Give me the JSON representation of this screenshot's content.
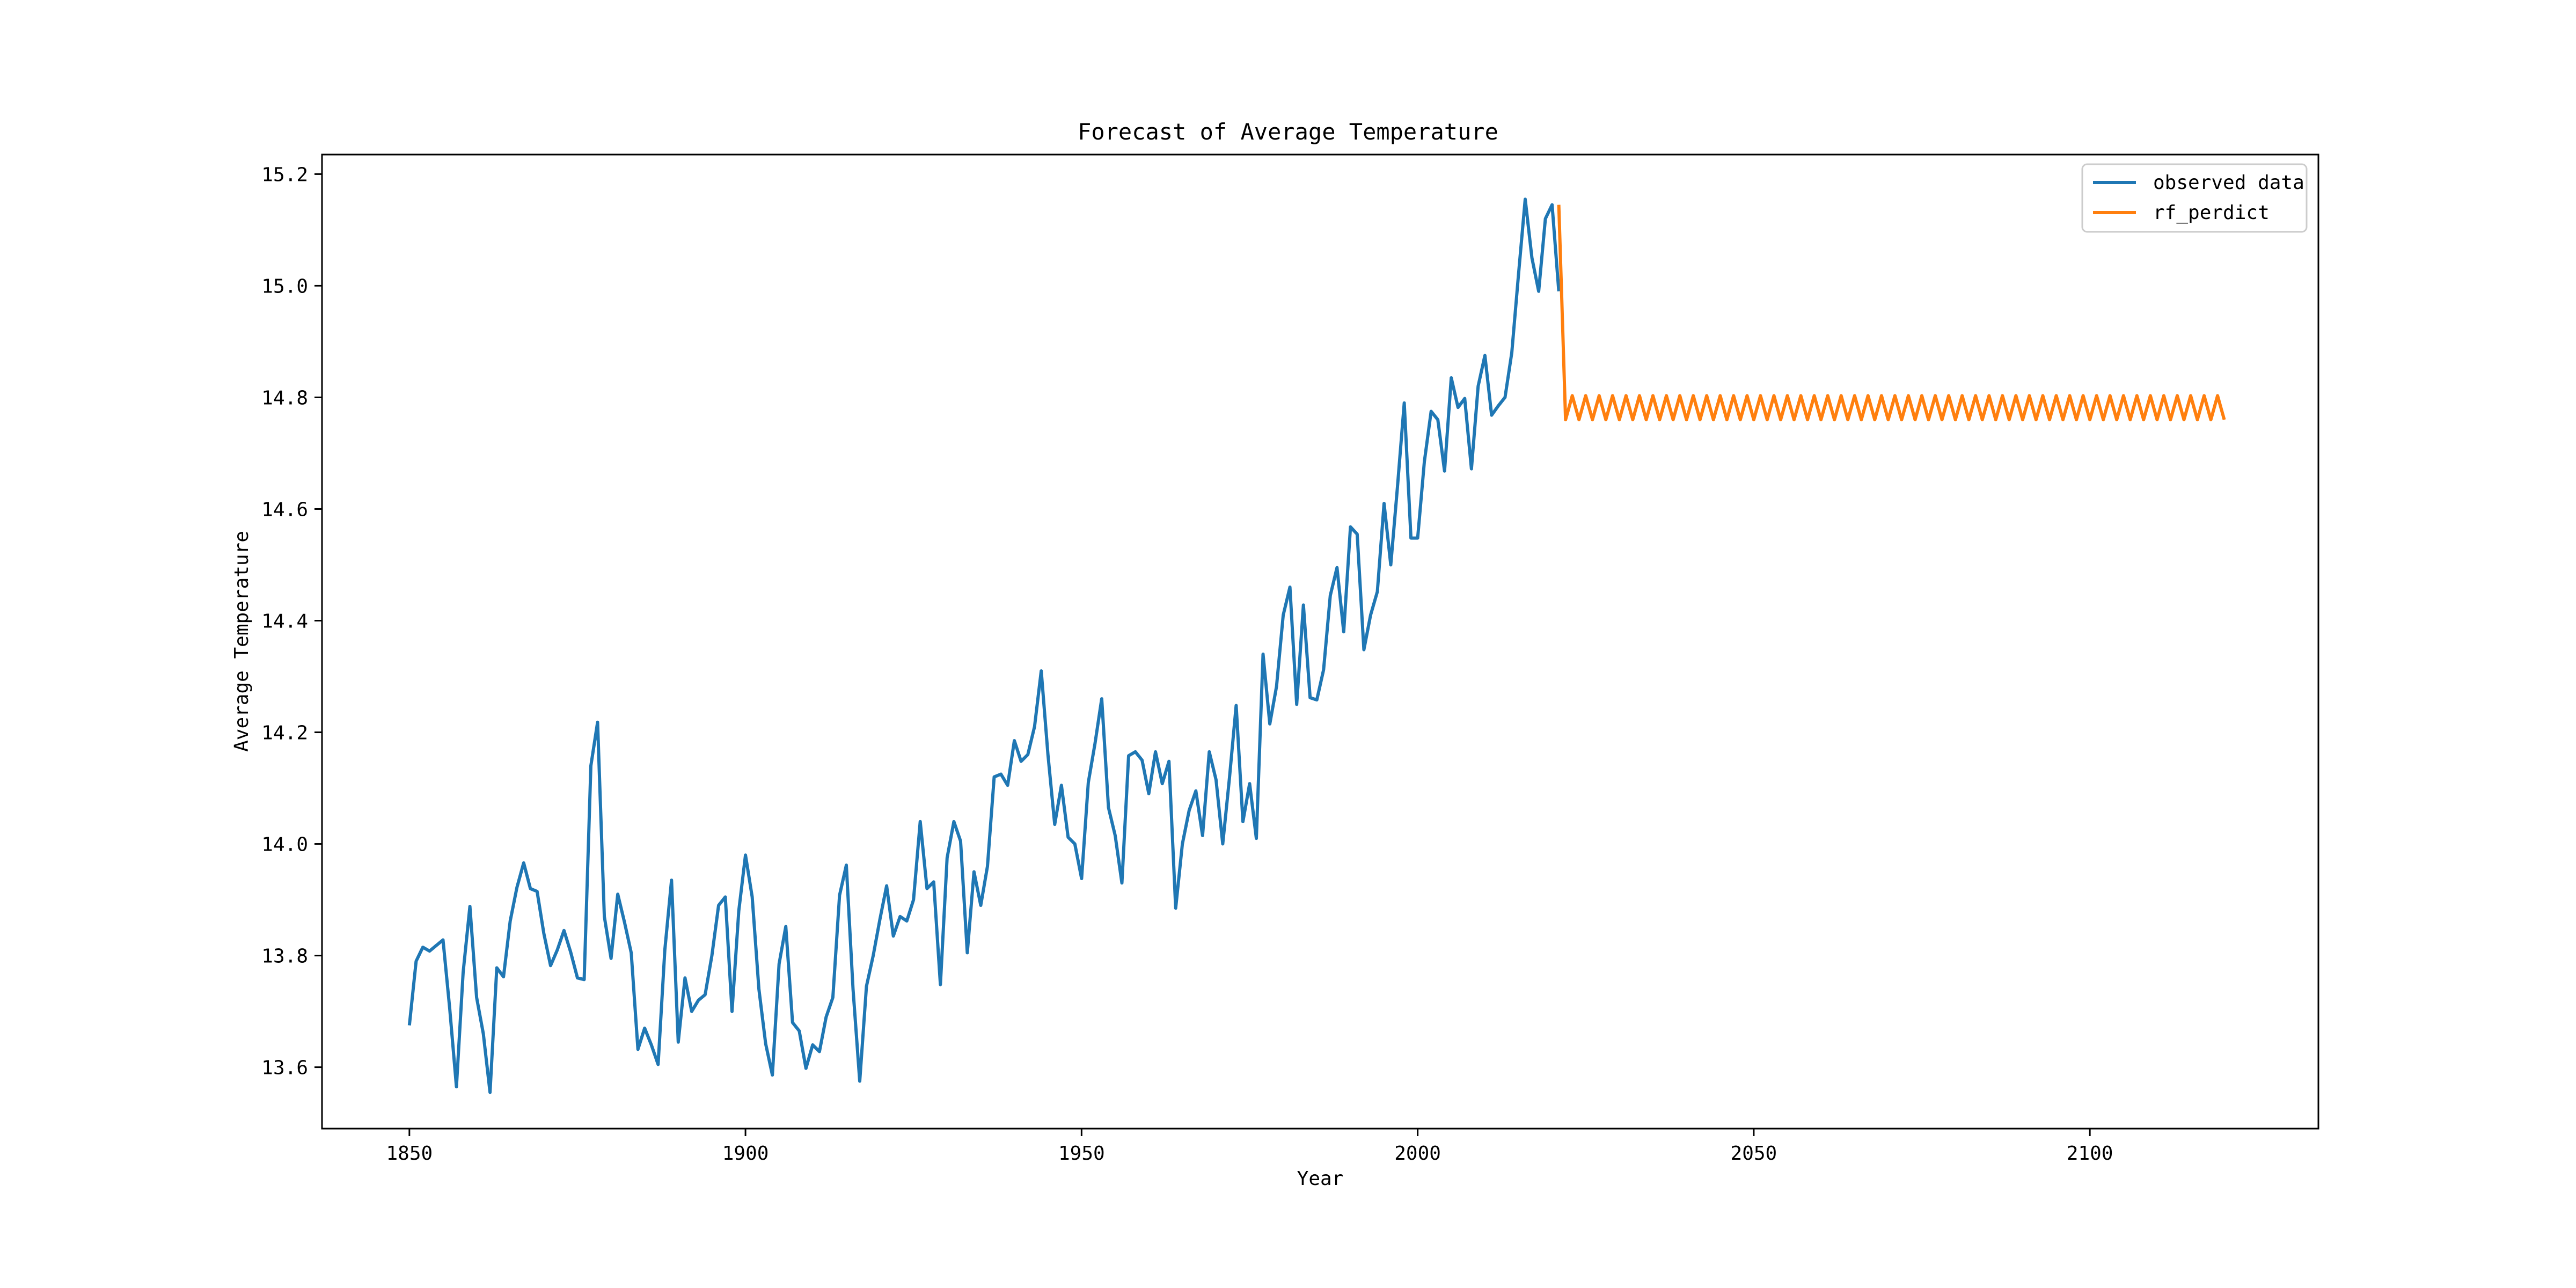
{
  "chart_data": {
    "type": "line",
    "title": "Forecast of Average Temperature",
    "xlabel": "Year",
    "ylabel": "Average Temperature",
    "xlim": [
      1837,
      2134
    ],
    "ylim": [
      13.49,
      15.235
    ],
    "xticks": [
      1850,
      1900,
      1950,
      2000,
      2050,
      2100
    ],
    "yticks": [
      13.6,
      13.8,
      14.0,
      14.2,
      14.4,
      14.6,
      14.8,
      15.0,
      15.2
    ],
    "xtick_labels": [
      "1850",
      "1900",
      "1950",
      "2000",
      "2050",
      "2100"
    ],
    "ytick_labels": [
      "13.6",
      "13.8",
      "14.0",
      "14.2",
      "14.4",
      "14.6",
      "14.8",
      "15.0",
      "15.2"
    ],
    "grid": false,
    "legend": "top-right",
    "series": [
      {
        "name": "observed data",
        "color": "#1f77b4",
        "x": [
          1850,
          1851,
          1852,
          1853,
          1854,
          1855,
          1856,
          1857,
          1858,
          1859,
          1860,
          1861,
          1862,
          1863,
          1864,
          1865,
          1866,
          1867,
          1868,
          1869,
          1870,
          1871,
          1872,
          1873,
          1874,
          1875,
          1876,
          1877,
          1878,
          1879,
          1880,
          1881,
          1882,
          1883,
          1884,
          1885,
          1886,
          1887,
          1888,
          1889,
          1890,
          1891,
          1892,
          1893,
          1894,
          1895,
          1896,
          1897,
          1898,
          1899,
          1900,
          1901,
          1902,
          1903,
          1904,
          1905,
          1906,
          1907,
          1908,
          1909,
          1910,
          1911,
          1912,
          1913,
          1914,
          1915,
          1916,
          1917,
          1918,
          1919,
          1920,
          1921,
          1922,
          1923,
          1924,
          1925,
          1926,
          1927,
          1928,
          1929,
          1930,
          1931,
          1932,
          1933,
          1934,
          1935,
          1936,
          1937,
          1938,
          1939,
          1940,
          1941,
          1942,
          1943,
          1944,
          1945,
          1946,
          1947,
          1948,
          1949,
          1950,
          1951,
          1952,
          1953,
          1954,
          1955,
          1956,
          1957,
          1958,
          1959,
          1960,
          1961,
          1962,
          1963,
          1964,
          1965,
          1966,
          1967,
          1968,
          1969,
          1970,
          1971,
          1972,
          1973,
          1974,
          1975,
          1976,
          1977,
          1978,
          1979,
          1980,
          1981,
          1982,
          1983,
          1984,
          1985,
          1986,
          1987,
          1988,
          1989,
          1990,
          1991,
          1992,
          1993,
          1994,
          1995,
          1996,
          1997,
          1998,
          1999,
          2000,
          2001,
          2002,
          2003,
          2004,
          2005,
          2006,
          2007,
          2008,
          2009,
          2010,
          2011,
          2012,
          2013,
          2014,
          2015,
          2016,
          2017,
          2018,
          2019,
          2020,
          2021
        ],
        "values": [
          13.675,
          13.79,
          13.815,
          13.808,
          13.818,
          13.828,
          13.705,
          13.565,
          13.77,
          13.888,
          13.725,
          13.66,
          13.555,
          13.778,
          13.762,
          13.862,
          13.922,
          13.966,
          13.92,
          13.915,
          13.84,
          13.782,
          13.81,
          13.845,
          13.806,
          13.76,
          13.757,
          14.14,
          14.218,
          13.87,
          13.795,
          13.91,
          13.86,
          13.805,
          13.632,
          13.67,
          13.64,
          13.605,
          13.81,
          13.935,
          13.645,
          13.76,
          13.7,
          13.72,
          13.73,
          13.8,
          13.89,
          13.905,
          13.7,
          13.88,
          13.98,
          13.905,
          13.74,
          13.642,
          13.586,
          13.785,
          13.852,
          13.68,
          13.665,
          13.598,
          13.64,
          13.628,
          13.69,
          13.725,
          13.908,
          13.962,
          13.74,
          13.575,
          13.745,
          13.8,
          13.865,
          13.925,
          13.835,
          13.87,
          13.862,
          13.9,
          14.04,
          13.92,
          13.932,
          13.748,
          13.975,
          14.04,
          14.005,
          13.805,
          13.95,
          13.89,
          13.96,
          14.12,
          14.125,
          14.105,
          14.185,
          14.148,
          14.16,
          14.21,
          14.31,
          14.16,
          14.035,
          14.105,
          14.012,
          14.0,
          13.938,
          14.11,
          14.18,
          14.26,
          14.065,
          14.015,
          13.93,
          14.158,
          14.165,
          14.15,
          14.09,
          14.165,
          14.108,
          14.148,
          13.885,
          14.0,
          14.06,
          14.095,
          14.015,
          14.165,
          14.115,
          14.0,
          14.118,
          14.248,
          14.04,
          14.108,
          14.01,
          14.34,
          14.215,
          14.282,
          14.41,
          14.46,
          14.25,
          14.428,
          14.262,
          14.258,
          14.312,
          14.445,
          14.495,
          14.38,
          14.568,
          14.555,
          14.348,
          14.41,
          14.452,
          14.61,
          14.5,
          14.64,
          14.79,
          14.548,
          14.548,
          14.685,
          14.775,
          14.76,
          14.668,
          14.835,
          14.782,
          14.798,
          14.672,
          14.82,
          14.875,
          14.768,
          14.785,
          14.8,
          14.88,
          15.02,
          15.155,
          15.05,
          14.99,
          15.12,
          15.145,
          14.99
        ]
      },
      {
        "name": "rf_perdict",
        "color": "#ff7f0e",
        "x": [
          2021,
          2022,
          2023,
          2024,
          2025,
          2026,
          2027,
          2028,
          2029,
          2030,
          2031,
          2032,
          2033,
          2034,
          2035,
          2036,
          2037,
          2038,
          2039,
          2040,
          2041,
          2042,
          2043,
          2044,
          2045,
          2046,
          2047,
          2048,
          2049,
          2050,
          2051,
          2052,
          2053,
          2054,
          2055,
          2056,
          2057,
          2058,
          2059,
          2060,
          2061,
          2062,
          2063,
          2064,
          2065,
          2066,
          2067,
          2068,
          2069,
          2070,
          2071,
          2072,
          2073,
          2074,
          2075,
          2076,
          2077,
          2078,
          2079,
          2080,
          2081,
          2082,
          2083,
          2084,
          2085,
          2086,
          2087,
          2088,
          2089,
          2090,
          2091,
          2092,
          2093,
          2094,
          2095,
          2096,
          2097,
          2098,
          2099,
          2100,
          2101,
          2102,
          2103,
          2104,
          2105,
          2106,
          2107,
          2108,
          2109,
          2110,
          2111,
          2112,
          2113,
          2114,
          2115,
          2116,
          2117,
          2118,
          2119,
          2120
        ],
        "values": [
          15.145,
          14.76,
          14.803,
          14.76,
          14.803,
          14.76,
          14.803,
          14.76,
          14.803,
          14.76,
          14.803,
          14.76,
          14.803,
          14.76,
          14.803,
          14.76,
          14.803,
          14.76,
          14.803,
          14.76,
          14.803,
          14.76,
          14.803,
          14.76,
          14.803,
          14.76,
          14.803,
          14.76,
          14.803,
          14.76,
          14.803,
          14.76,
          14.803,
          14.76,
          14.803,
          14.76,
          14.803,
          14.76,
          14.803,
          14.76,
          14.803,
          14.76,
          14.803,
          14.76,
          14.803,
          14.76,
          14.803,
          14.76,
          14.803,
          14.76,
          14.803,
          14.76,
          14.803,
          14.76,
          14.803,
          14.76,
          14.803,
          14.76,
          14.803,
          14.76,
          14.803,
          14.76,
          14.803,
          14.76,
          14.803,
          14.76,
          14.803,
          14.76,
          14.803,
          14.76,
          14.803,
          14.76,
          14.803,
          14.76,
          14.803,
          14.76,
          14.803,
          14.76,
          14.803,
          14.76,
          14.803,
          14.76,
          14.803,
          14.76,
          14.803,
          14.76,
          14.803,
          14.76,
          14.803,
          14.76,
          14.803,
          14.76,
          14.803,
          14.76,
          14.803,
          14.76,
          14.803,
          14.76,
          14.803,
          14.76
        ]
      }
    ]
  }
}
